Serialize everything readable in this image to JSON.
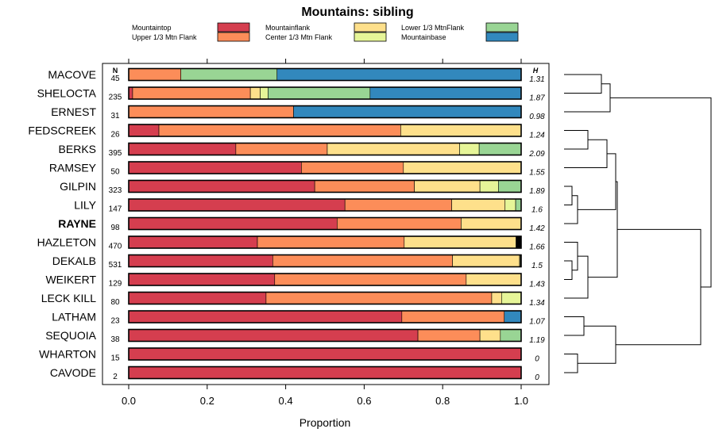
{
  "chart_data": {
    "type": "bar",
    "stacked": true,
    "orientation": "horizontal",
    "title": "Mountains: sibling",
    "xlabel": "Proportion",
    "xlim": [
      0,
      1
    ],
    "xticks": [
      "0.0",
      "0.2",
      "0.4",
      "0.6",
      "0.8",
      "1.0"
    ],
    "n_header": "N",
    "h_header": "H",
    "legend": [
      {
        "name": "Mountaintop",
        "color": "#d53e4f"
      },
      {
        "name": "Upper 1/3 Mtn Flank",
        "color": "#fc8d59"
      },
      {
        "name": "Mountainflank",
        "color": "#fee08b"
      },
      {
        "name": "Center 1/3 Mtn Flank",
        "color": "#e6f598"
      },
      {
        "name": "Lower 1/3 MtnFlank",
        "color": "#99d594"
      },
      {
        "name": "Mountainbase",
        "color": "#3288bd"
      }
    ],
    "extra_category_color": "#000000",
    "highlight": "RAYNE",
    "rows": [
      {
        "name": "MACOVE",
        "n": "45",
        "h": "1.31",
        "values": [
          0,
          0.133,
          0,
          0,
          0.245,
          0.622,
          0
        ]
      },
      {
        "name": "SHELOCTA",
        "n": "235",
        "h": "1.87",
        "values": [
          0.01,
          0.3,
          0.025,
          0.02,
          0.26,
          0.385,
          0
        ]
      },
      {
        "name": "ERNEST",
        "n": "31",
        "h": "0.98",
        "values": [
          0,
          0.42,
          0,
          0,
          0,
          0.58,
          0
        ]
      },
      {
        "name": "FEDSCREEK",
        "n": "26",
        "h": "1.24",
        "values": [
          0.077,
          0.616,
          0.307,
          0,
          0,
          0,
          0
        ]
      },
      {
        "name": "BERKS",
        "n": "395",
        "h": "2.09",
        "values": [
          0.273,
          0.233,
          0.337,
          0.05,
          0.107,
          0,
          0
        ]
      },
      {
        "name": "RAMSEY",
        "n": "50",
        "h": "1.55",
        "values": [
          0.44,
          0.26,
          0.3,
          0,
          0,
          0,
          0
        ]
      },
      {
        "name": "GILPIN",
        "n": "323",
        "h": "1.89",
        "values": [
          0.474,
          0.254,
          0.167,
          0.047,
          0.058,
          0,
          0
        ]
      },
      {
        "name": "LILY",
        "n": "147",
        "h": "1.6",
        "values": [
          0.551,
          0.272,
          0.136,
          0.027,
          0.014,
          0,
          0
        ]
      },
      {
        "name": "RAYNE",
        "n": "98",
        "h": "1.42",
        "values": [
          0.531,
          0.316,
          0.153,
          0,
          0,
          0,
          0
        ]
      },
      {
        "name": "HAZLETON",
        "n": "470",
        "h": "1.66",
        "values": [
          0.328,
          0.374,
          0.285,
          0,
          0,
          0,
          0.013
        ]
      },
      {
        "name": "DEKALB",
        "n": "531",
        "h": "1.5",
        "values": [
          0.367,
          0.458,
          0.171,
          0.002,
          0,
          0,
          0.002
        ]
      },
      {
        "name": "WEIKERT",
        "n": "129",
        "h": "1.43",
        "values": [
          0.372,
          0.488,
          0.14,
          0,
          0,
          0,
          0
        ]
      },
      {
        "name": "LECK KILL",
        "n": "80",
        "h": "1.34",
        "values": [
          0.35,
          0.575,
          0.025,
          0.05,
          0,
          0,
          0
        ]
      },
      {
        "name": "LATHAM",
        "n": "23",
        "h": "1.07",
        "values": [
          0.696,
          0.261,
          0,
          0,
          0,
          0.043,
          0
        ]
      },
      {
        "name": "SEQUOIA",
        "n": "38",
        "h": "1.19",
        "values": [
          0.737,
          0.158,
          0.052,
          0,
          0.053,
          0,
          0
        ]
      },
      {
        "name": "WHARTON",
        "n": "15",
        "h": "0",
        "values": [
          1,
          0,
          0,
          0,
          0,
          0,
          0
        ]
      },
      {
        "name": "CAVODE",
        "n": "2",
        "h": "0",
        "values": [
          1,
          0,
          0,
          0,
          0,
          0,
          0
        ]
      }
    ]
  }
}
